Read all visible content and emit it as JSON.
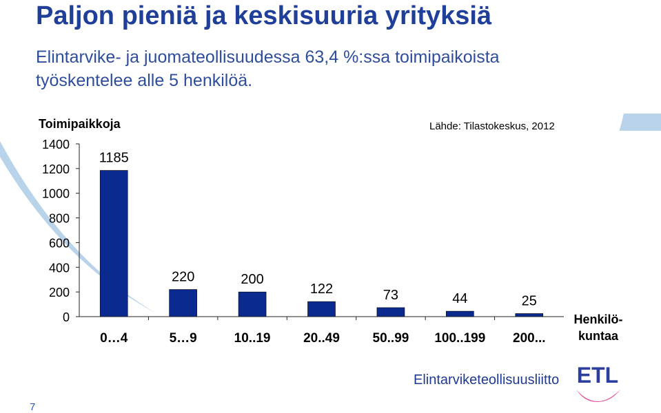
{
  "slide": {
    "title": "Paljon pieniä ja keskisuuria yrityksiä",
    "subtitle": "Elintarvike- ja juomateollisuudessa 63,4 %:ssa toimipaikoista työskentelee alle 5 henkilöä.",
    "page_number": "7"
  },
  "footer": {
    "organization": "Elintarviketeollisuusliitto",
    "logo_text": "ETL"
  },
  "colors": {
    "title": "#1f3f99",
    "bar": "#0a2a8f",
    "background_arc": "#b9d3ea"
  },
  "chart_data": {
    "type": "bar",
    "ylabel": "Toimipaikkoja",
    "xlabel_lines": [
      "Henkilö-",
      "kuntaa"
    ],
    "source": "Lähde: Tilastokeskus, 2012",
    "categories": [
      "0…4",
      "5…9",
      "10..19",
      "20..49",
      "50..99",
      "100..199",
      "200..."
    ],
    "values": [
      1185,
      220,
      200,
      122,
      73,
      44,
      25
    ],
    "data_labels": [
      "1185",
      "220",
      "200",
      "122",
      "73",
      "44",
      "25"
    ],
    "ylim": [
      0,
      1400
    ],
    "yticks": [
      0,
      200,
      400,
      600,
      800,
      1000,
      1200,
      1400
    ],
    "grid": false,
    "legend": "none"
  }
}
